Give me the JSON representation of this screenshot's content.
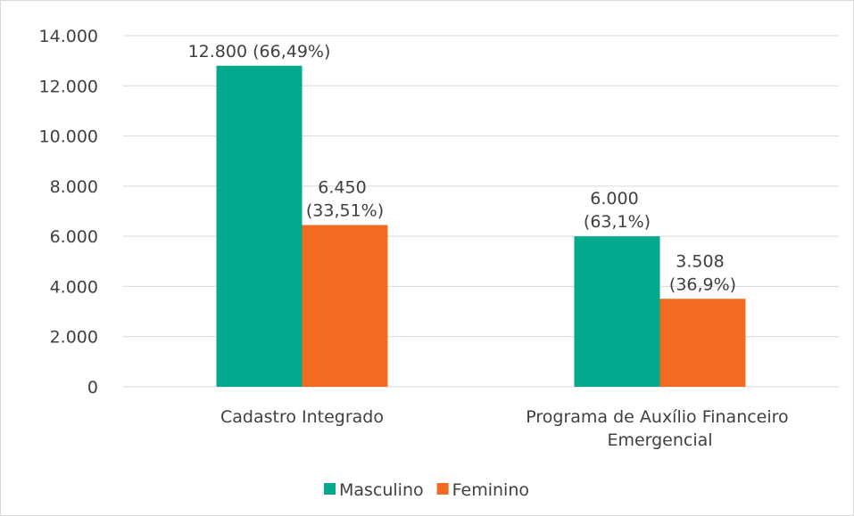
{
  "chart_data": {
    "type": "bar",
    "categories": [
      "Cadastro Integrado",
      "Programa de Auxílio Financeiro Emergencial"
    ],
    "series": [
      {
        "name": "Masculino",
        "color": "#02a98c",
        "values": [
          12800,
          6000
        ],
        "value_labels": [
          "12.800 (66,49%)",
          "6.000 (63,1%)"
        ]
      },
      {
        "name": "Feminino",
        "color": "#f26b21",
        "values": [
          6450,
          3508
        ],
        "value_labels": [
          "6.450 (33,51%)",
          "3.508 (36,9%)"
        ]
      }
    ],
    "ylim": [
      0,
      14000
    ],
    "yticks": [
      0,
      {
        "value": 2000,
        "label": "2.000"
      },
      {
        "value": 4000,
        "label": "4.000"
      },
      {
        "value": 6000,
        "label": "6.000"
      },
      {
        "value": 8000,
        "label": "8.000"
      },
      {
        "value": 10000,
        "label": "10.000"
      },
      {
        "value": 12000,
        "label": "12.000"
      },
      {
        "value": 14000,
        "label": "14.000"
      }
    ],
    "grid": true,
    "legend": "bottom"
  }
}
